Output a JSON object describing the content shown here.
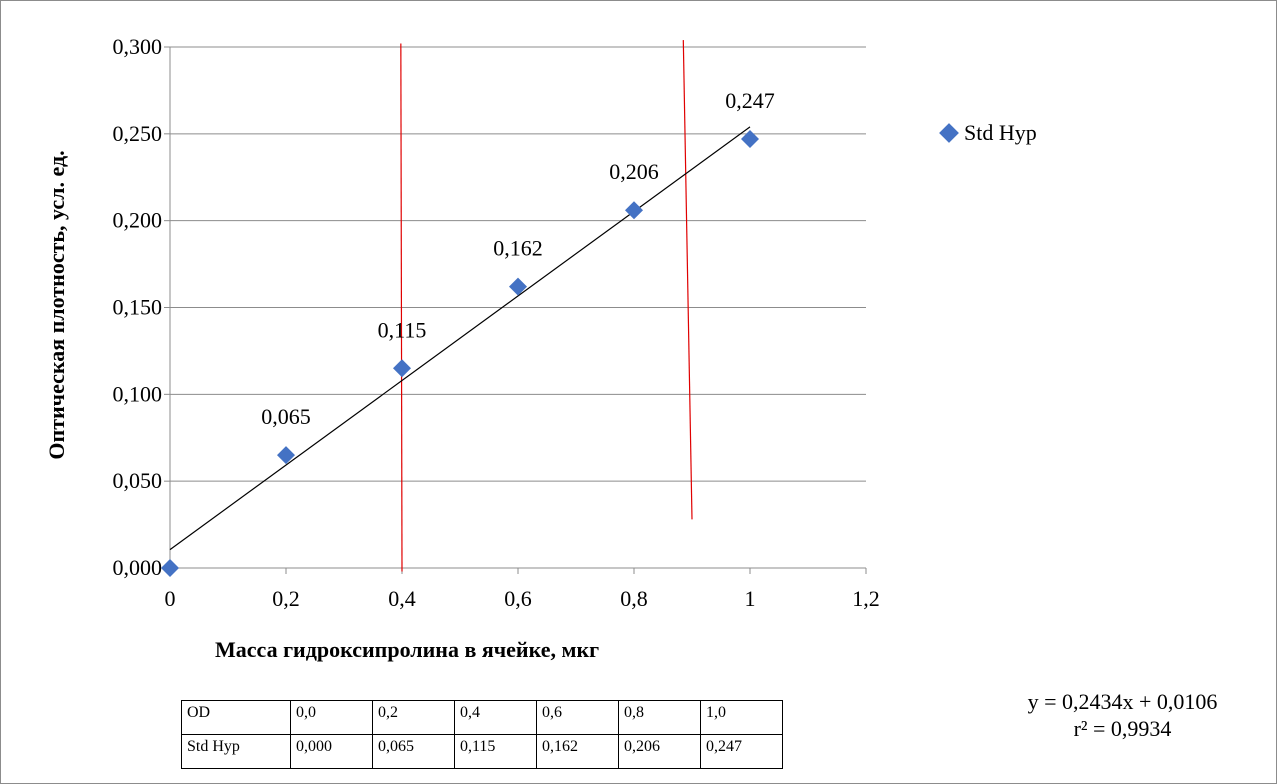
{
  "chart_data": {
    "type": "scatter",
    "xlabel": "Масса гидроксипролина в ячейке, мкг",
    "ylabel": "Оптическая плотность, усл. ед.",
    "xlim": [
      0,
      1.2
    ],
    "ylim": [
      0,
      0.3
    ],
    "x_ticks": [
      "0",
      "0,2",
      "0,4",
      "0,6",
      "0,8",
      "1",
      "1,2"
    ],
    "y_ticks": [
      "0,000",
      "0,050",
      "0,100",
      "0,150",
      "0,200",
      "0,250",
      "0,300"
    ],
    "grid": "horizontal",
    "legend_position": "right",
    "series": [
      {
        "name": "Std Hyp",
        "color": "#4472c4",
        "marker": "diamond",
        "x": [
          0,
          0.2,
          0.4,
          0.6,
          0.8,
          1.0
        ],
        "y": [
          0.0,
          0.065,
          0.115,
          0.162,
          0.206,
          0.247
        ],
        "labels": [
          "",
          "0,065",
          "0,115",
          "0,162",
          "0,206",
          "0,247"
        ]
      }
    ],
    "trendline": {
      "slope": 0.2434,
      "intercept": 0.0106,
      "x_range": [
        0,
        1.0
      ],
      "color": "#000000"
    },
    "vertical_lines": [
      {
        "x": [
          0.398,
          0.4
        ],
        "y": [
          0.302,
          -0.002
        ],
        "color": "#e00000"
      },
      {
        "x": [
          0.885,
          0.9
        ],
        "y": [
          0.304,
          0.028
        ],
        "color": "#e00000"
      }
    ],
    "equation": "y = 0,2434x + 0,0106",
    "r2": "r² = 0,9934"
  },
  "table": {
    "rows": [
      {
        "head": "OD",
        "cells": [
          "0,0",
          "0,2",
          "0,4",
          "0,6",
          "0,8",
          "1,0"
        ]
      },
      {
        "head": "Std Hyp",
        "cells": [
          "0,000",
          "0,065",
          "0,115",
          "0,162",
          "0,206",
          "0,247"
        ]
      }
    ]
  }
}
